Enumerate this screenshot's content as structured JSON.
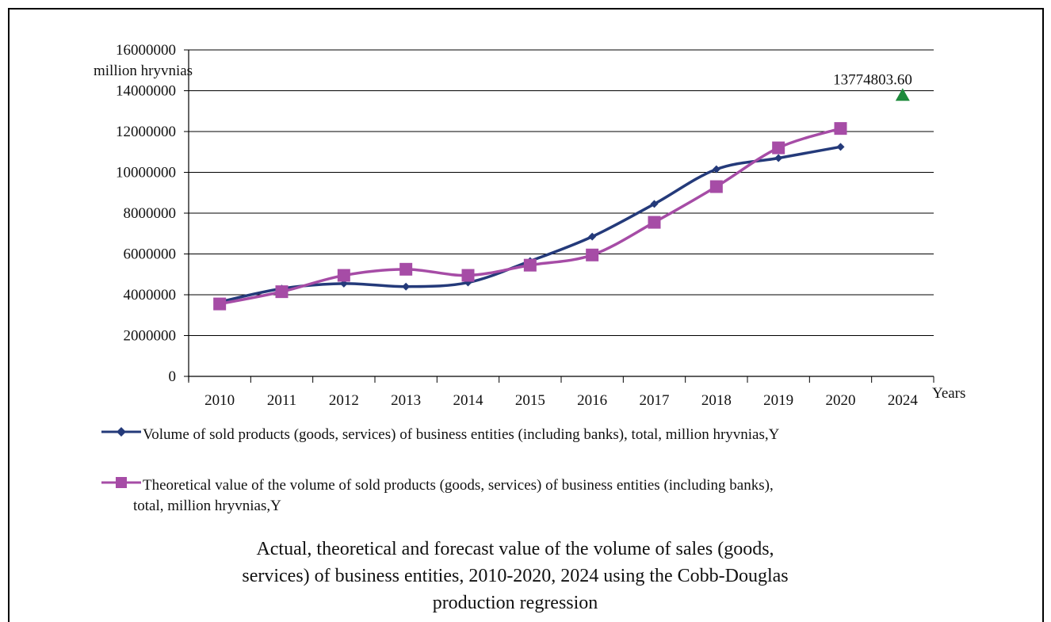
{
  "chart_data": {
    "type": "line",
    "title": "Actual, theoretical and forecast value of the volume of sales (goods, services) of business entities, 2010-2020,  2024 using the Cobb-Douglas production regression",
    "title_lines": [
      "Actual, theoretical and forecast value of the volume of sales (goods,",
      "services) of business entities, 2010-2020,  2024 using the Cobb-Douglas",
      "production regression"
    ],
    "ylabel": "million hryvnias",
    "xlabel": "Years",
    "categories": [
      "2010",
      "2011",
      "2012",
      "2013",
      "2014",
      "2015",
      "2016",
      "2017",
      "2018",
      "2019",
      "2020",
      "2024"
    ],
    "ylim": [
      0,
      16000000
    ],
    "yticks": [
      0,
      2000000,
      4000000,
      6000000,
      8000000,
      10000000,
      12000000,
      14000000,
      16000000
    ],
    "ytick_labels": [
      "0",
      "2000000",
      "4000000",
      "6000000",
      "8000000",
      "10000000",
      "12000000",
      "14000000",
      "16000000"
    ],
    "grid": true,
    "legend_position": "bottom",
    "series": [
      {
        "name": "Volume of sold products (goods, services) of business entities (including banks), total, million hryvnias,Y",
        "color": "#243A7A",
        "marker": "diamond",
        "values": [
          3650000,
          4300000,
          4550000,
          4400000,
          4600000,
          5650000,
          6850000,
          8450000,
          10150000,
          10700000,
          11250000,
          null
        ]
      },
      {
        "name": "Theoretical value of the volume of sold products (goods, services) of business entities (including banks), total, million hryvnias,Y",
        "name_lines": [
          "Theoretical value of the volume of sold products (goods, services) of business entities (including banks),",
          "total, million hryvnias,Y"
        ],
        "color": "#A64CA6",
        "marker": "square",
        "values": [
          3550000,
          4150000,
          4950000,
          5250000,
          4950000,
          5450000,
          5950000,
          7550000,
          9300000,
          11200000,
          12150000,
          null
        ]
      },
      {
        "name": "",
        "color": "#1E8A3C",
        "marker": "triangle",
        "values": [
          null,
          null,
          null,
          null,
          null,
          null,
          null,
          null,
          null,
          null,
          null,
          13774803.6
        ]
      }
    ],
    "annotations": [
      {
        "category": "2024",
        "value": 13774803.6,
        "text": "13774803.60"
      }
    ]
  }
}
